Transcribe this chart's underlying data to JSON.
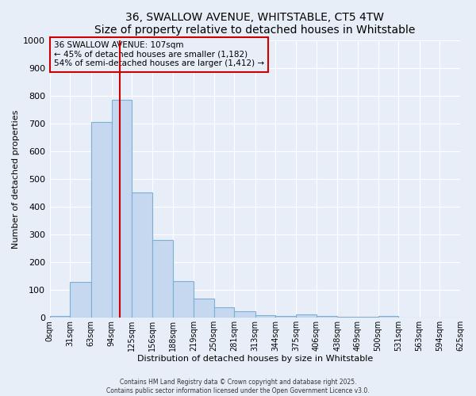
{
  "title": "36, SWALLOW AVENUE, WHITSTABLE, CT5 4TW",
  "subtitle": "Size of property relative to detached houses in Whitstable",
  "xlabel": "Distribution of detached houses by size in Whitstable",
  "ylabel": "Number of detached properties",
  "bar_edges": [
    0,
    31,
    63,
    94,
    125,
    156,
    188,
    219,
    250,
    281,
    313,
    344,
    375,
    406,
    438,
    469,
    500,
    531,
    563,
    594,
    625
  ],
  "bar_heights": [
    5,
    130,
    705,
    785,
    450,
    280,
    133,
    70,
    37,
    22,
    10,
    5,
    12,
    5,
    2,
    2,
    7,
    0,
    0,
    0
  ],
  "bar_color": "#c5d8f0",
  "bar_edge_color": "#7bafd4",
  "property_line_x": 107,
  "property_line_color": "#cc0000",
  "ylim": [
    0,
    1000
  ],
  "yticks": [
    0,
    100,
    200,
    300,
    400,
    500,
    600,
    700,
    800,
    900,
    1000
  ],
  "background_color": "#e8eef8",
  "plot_bg_color": "#e8eef8",
  "grid_color": "#ffffff",
  "annotation_text": "36 SWALLOW AVENUE: 107sqm\n← 45% of detached houses are smaller (1,182)\n54% of semi-detached houses are larger (1,412) →",
  "annotation_box_color": "#cc0000",
  "footer_line1": "Contains HM Land Registry data © Crown copyright and database right 2025.",
  "footer_line2": "Contains public sector information licensed under the Open Government Licence v3.0."
}
